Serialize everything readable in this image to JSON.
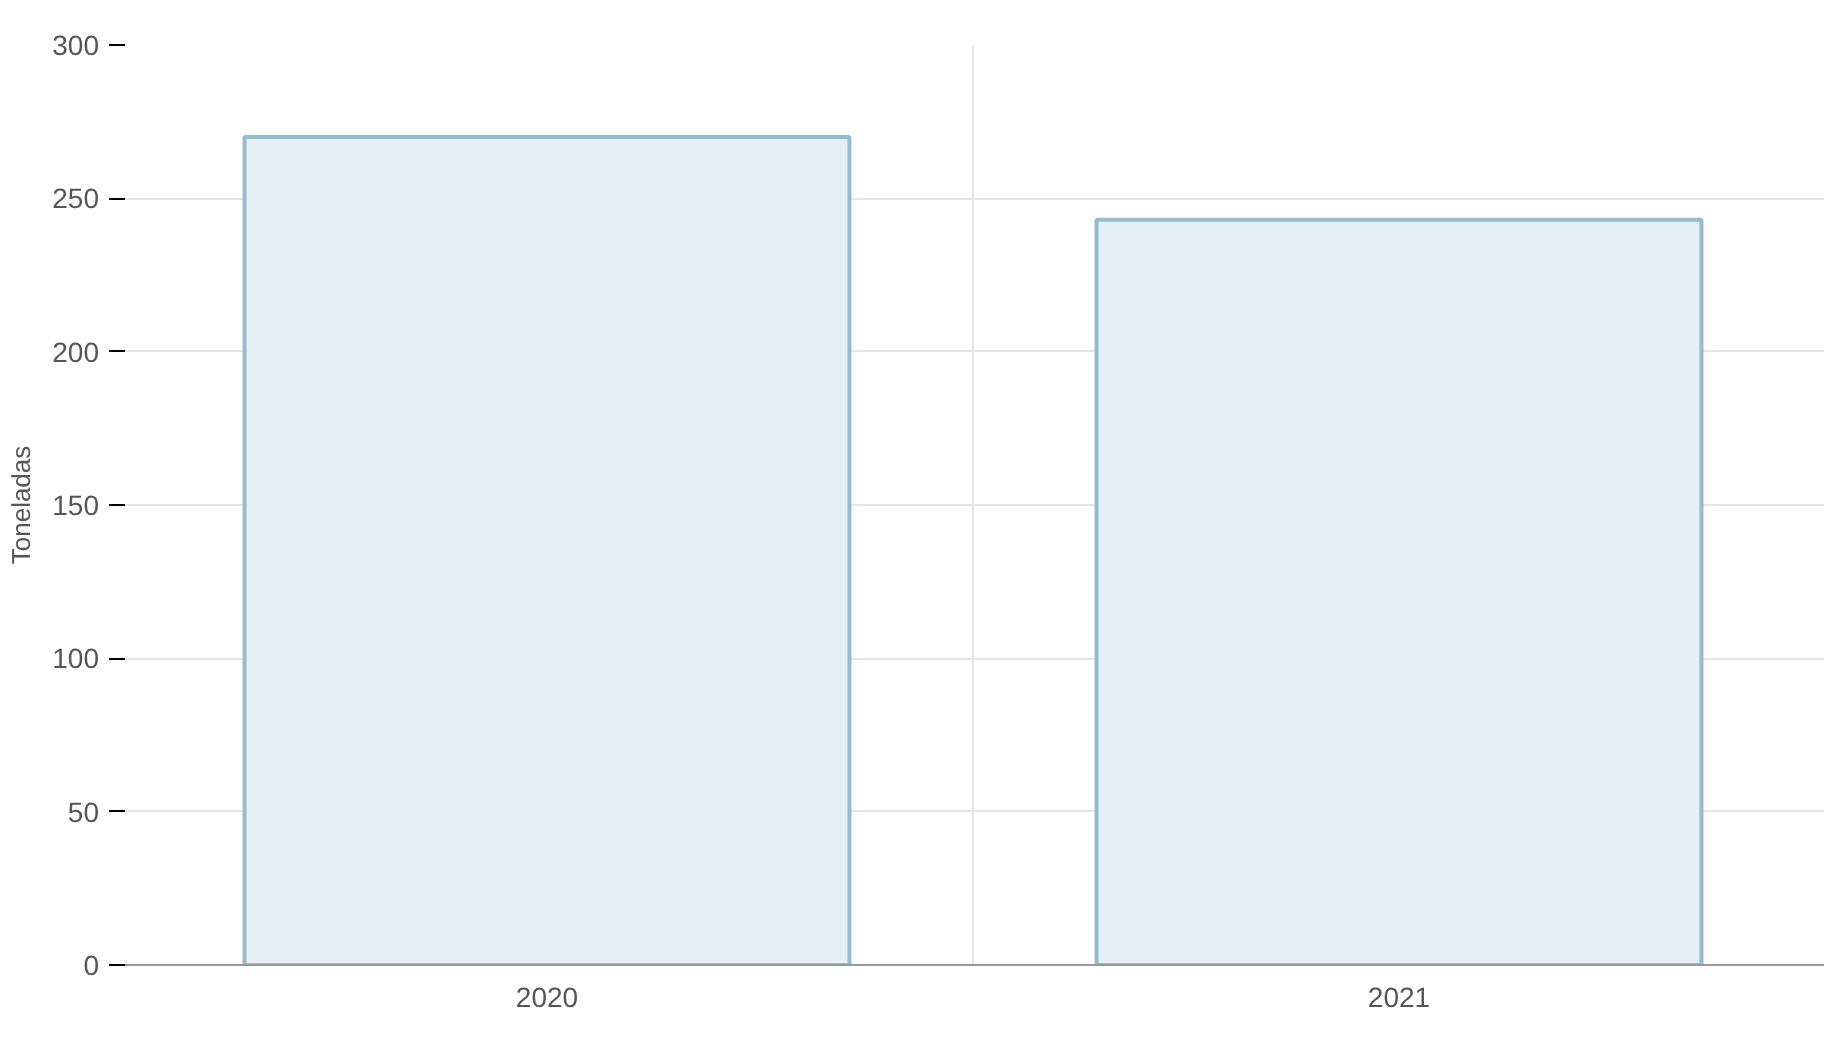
{
  "chart_data": {
    "type": "bar",
    "ylabel": "Toneladas",
    "categories": [
      "2020",
      "2021"
    ],
    "series": [
      {
        "color": "#e6eff3",
        "values": [
          270,
          243
        ]
      }
    ],
    "ylim": [
      0,
      300
    ],
    "yticks": [
      0,
      50,
      100,
      150,
      200,
      250,
      300
    ],
    "grid": true
  }
}
